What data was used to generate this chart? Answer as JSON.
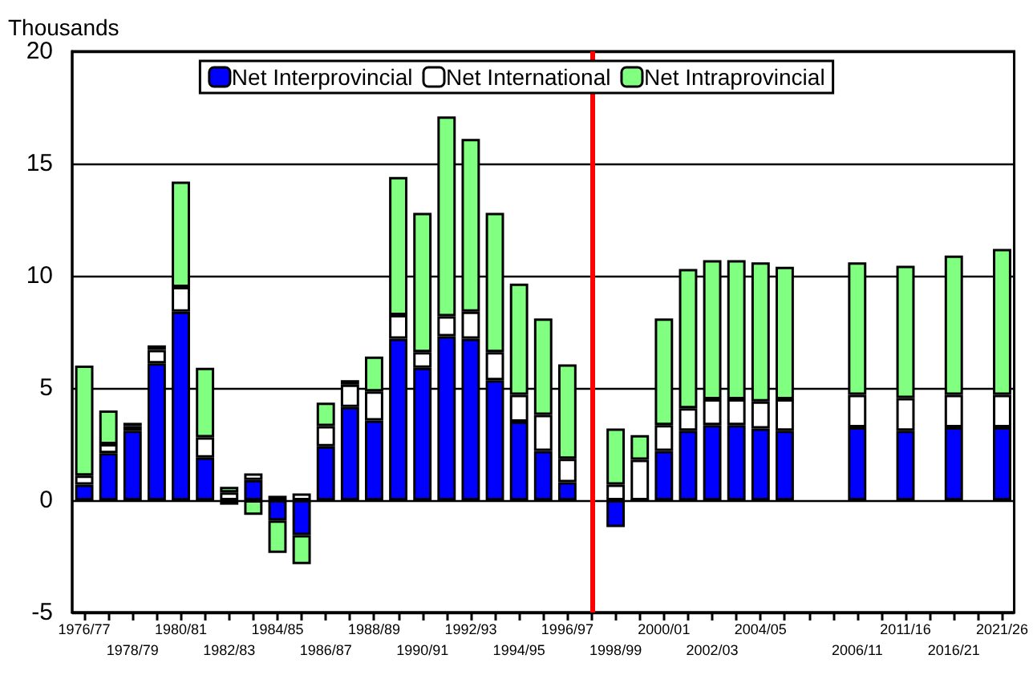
{
  "chart_data": {
    "type": "bar",
    "ylabel": "Thousands",
    "stacked": true,
    "grid": "y",
    "legend": "top",
    "categories": [
      "1976/77",
      null,
      "1978/79",
      null,
      "1980/81",
      null,
      "1982/83",
      null,
      "1984/85",
      null,
      "1986/87",
      null,
      "1988/89",
      null,
      "1990/91",
      null,
      "1992/93",
      null,
      "1994/95",
      null,
      "1996/97",
      null,
      "1998/99",
      null,
      "2000/01",
      null,
      "2002/03",
      null,
      "2004/05",
      null,
      null,
      null,
      "2006/11",
      null,
      "2011/16",
      null,
      "2016/21",
      null,
      "2021/26"
    ],
    "series": [
      {
        "name": "Net Interprovincial",
        "color": "#0000ff",
        "values": [
          0.7,
          2.1,
          3.1,
          6.1,
          8.4,
          1.9,
          -0.2,
          0.9,
          -0.9,
          -1.55,
          2.4,
          4.15,
          3.55,
          7.2,
          5.9,
          7.3,
          7.2,
          5.35,
          3.5,
          2.2,
          0.8,
          null,
          -1.2,
          0,
          2.2,
          3.1,
          3.35,
          3.35,
          3.2,
          3.1,
          null,
          null,
          3.25,
          null,
          3.1,
          null,
          3.25,
          null,
          3.25
        ]
      },
      {
        "name": "Net International",
        "color": "#ffffff",
        "values": [
          0.4,
          0.4,
          0.2,
          0.6,
          1.1,
          0.9,
          0.35,
          0.3,
          0.2,
          0.3,
          0.9,
          1.0,
          1.3,
          1.05,
          0.7,
          0.9,
          1.2,
          1.25,
          1.2,
          1.6,
          1.05,
          null,
          0.7,
          1.8,
          1.15,
          1.0,
          1.15,
          1.15,
          1.2,
          1.4,
          null,
          null,
          1.45,
          null,
          1.45,
          null,
          1.45,
          null,
          1.45
        ]
      },
      {
        "name": "Net Intraprovincial",
        "color": "#80ff80",
        "values": [
          4.9,
          1.5,
          0.15,
          0.2,
          4.7,
          3.1,
          0.25,
          -0.65,
          -1.45,
          -1.3,
          1.05,
          0.2,
          1.55,
          6.15,
          6.2,
          8.9,
          7.7,
          6.2,
          4.95,
          4.3,
          4.2,
          null,
          2.5,
          1.1,
          4.75,
          6.2,
          6.2,
          6.2,
          6.2,
          5.9,
          null,
          null,
          5.9,
          null,
          5.9,
          null,
          6.2,
          null,
          6.5
        ]
      }
    ],
    "ylim": [
      -5,
      20
    ],
    "yticks": [
      -5,
      0,
      5,
      10,
      15,
      20
    ]
  }
}
